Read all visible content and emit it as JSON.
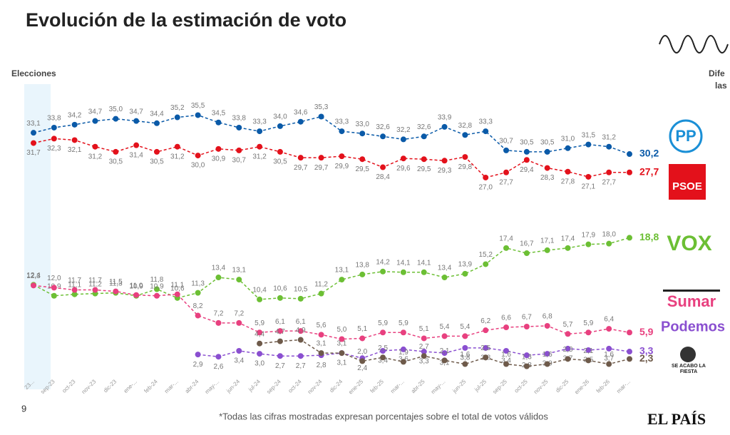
{
  "header": {
    "title": "Evolución de la estimación de voto",
    "side_label": [
      "Dife",
      "las"
    ]
  },
  "chart_data": {
    "type": "line",
    "highlight_label": "Elecciones",
    "ylim": [
      0,
      37
    ],
    "categories": [
      "23...",
      "sep-23",
      "oct-23",
      "nov-23",
      "dic-23",
      "ene-...",
      "feb-24",
      "mar-...",
      "abr-24",
      "may-...",
      "jun-24",
      "jul-24",
      "sep-24",
      "oct-24",
      "nov-24",
      "dic-24",
      "ene-25",
      "feb-25",
      "mar-...",
      "abr-25",
      "may-...",
      "jun-25",
      "jul-25",
      "sep-25",
      "oct-25",
      "nov-25",
      "dic-25",
      "ene-26",
      "feb-26",
      "mar-..."
    ],
    "series": [
      {
        "name": "PP",
        "color": "#0a5aa8",
        "label_pos": "above",
        "values": [
          33.1,
          33.8,
          34.2,
          34.7,
          35.0,
          34.7,
          34.4,
          35.2,
          35.5,
          34.5,
          33.8,
          33.3,
          34.0,
          34.6,
          35.3,
          33.3,
          33.0,
          32.6,
          32.2,
          32.6,
          33.9,
          32.8,
          33.3,
          30.7,
          30.5,
          30.5,
          31.0,
          31.5,
          31.2,
          30.2
        ],
        "value_labels": [
          "33,1",
          "33,8",
          "34,2",
          "34,7",
          "35,0",
          "34,7",
          "34,4",
          "35,2",
          "35,5",
          "34,5",
          "33,8",
          "33,3",
          "34,0",
          "34,6",
          "35,3",
          "33,3",
          "33,0",
          "32,6",
          "32,2",
          "32,6",
          "33,9",
          "32,8",
          "33,3",
          "30,7",
          "30,5",
          "30,5",
          "31,0",
          "31,5",
          "31,2",
          "30,2"
        ]
      },
      {
        "name": "PSOE",
        "color": "#e3111b",
        "label_pos": "below",
        "values": [
          31.7,
          32.3,
          32.1,
          31.2,
          30.5,
          31.4,
          30.5,
          31.2,
          30.0,
          30.9,
          30.7,
          31.2,
          30.5,
          29.7,
          29.7,
          29.9,
          29.5,
          28.4,
          29.6,
          29.5,
          29.3,
          29.8,
          27.0,
          27.7,
          29.4,
          28.3,
          27.8,
          27.1,
          27.7,
          27.7
        ],
        "value_labels": [
          "31,7",
          "32,3",
          "32,1",
          "31,2",
          "30,5",
          "31,4",
          "30,5",
          "31,2",
          "30,0",
          "30,9",
          "30,7",
          "31,2",
          "30,5",
          "29,7",
          "29,7",
          "29,9",
          "29,5",
          "28,4",
          "29,6",
          "29,5",
          "29,3",
          "29,8",
          "27,0",
          "27,7",
          "29,4",
          "28,3",
          "27,8",
          "27,1",
          "27,7",
          "27,7"
        ]
      },
      {
        "name": "VOX",
        "color": "#6cbf34",
        "label_pos": "above",
        "values": [
          12.4,
          10.9,
          11.1,
          11.2,
          11.3,
          10.9,
          11.8,
          10.6,
          11.3,
          13.4,
          13.1,
          10.4,
          10.6,
          10.5,
          11.2,
          13.1,
          13.8,
          14.2,
          14.1,
          14.1,
          13.4,
          13.9,
          15.2,
          17.4,
          16.7,
          17.1,
          17.4,
          17.9,
          18.0,
          18.8
        ],
        "value_labels": [
          "12,4",
          "10,9",
          "11,1",
          "11,2",
          "11,3",
          "10,9",
          "11,8",
          "10,6",
          "11,3",
          "13,4",
          "13,1",
          "10,4",
          "10,6",
          "10,5",
          "11,2",
          "13,1",
          "13,8",
          "14,2",
          "14,1",
          "14,1",
          "13,4",
          "13,9",
          "15,2",
          "17,4",
          "16,7",
          "17,1",
          "17,4",
          "17,9",
          "18,0",
          "18,8"
        ]
      },
      {
        "name": "Sumar",
        "color": "#e8407f",
        "label_pos": "above",
        "values": [
          12.3,
          12.0,
          11.7,
          11.7,
          11.5,
          11.0,
          10.9,
          11.1,
          8.2,
          7.2,
          7.2,
          5.9,
          6.1,
          6.1,
          5.6,
          5.0,
          5.1,
          5.9,
          5.9,
          5.1,
          5.4,
          5.4,
          6.2,
          6.6,
          6.7,
          6.8,
          5.7,
          5.9,
          6.4,
          5.9
        ],
        "value_labels": [
          "12,3",
          "12,0",
          "11,7",
          "11,7",
          "11,5",
          "11,0",
          "10,9",
          "11,1",
          "8,2",
          "7,2",
          "7,2",
          "5,9",
          "6,1",
          "6,1",
          "5,6",
          "5,0",
          "5,1",
          "5,9",
          "5,9",
          "5,1",
          "5,4",
          "5,4",
          "6,2",
          "6,6",
          "6,7",
          "6,8",
          "5,7",
          "5,9",
          "6,4",
          "5,9"
        ]
      },
      {
        "name": "Podemos",
        "color": "#8a4fd0",
        "label_pos": "below",
        "values": [
          null,
          null,
          null,
          null,
          null,
          null,
          null,
          null,
          2.9,
          2.6,
          3.4,
          3.0,
          2.7,
          2.7,
          2.8,
          3.1,
          2.4,
          3.4,
          3.6,
          3.3,
          3.1,
          3.8,
          3.8,
          3.4,
          2.8,
          3.0,
          3.7,
          3.5,
          3.7,
          3.3
        ],
        "value_labels": [
          null,
          null,
          null,
          null,
          null,
          null,
          null,
          null,
          "2,9",
          "2,6",
          "3,4",
          "3,0",
          "2,7",
          "2,7",
          "2,8",
          "3,1",
          "2,4",
          "3,4",
          "3,6",
          "3,3",
          "3,1",
          "3,8",
          "3,8",
          "3,4",
          "2,8",
          "3,0",
          "3,7",
          "3,5",
          "3,7",
          "3,3"
        ]
      },
      {
        "name": "SE ACABÓ LA FIESTA",
        "color": "#6e5a4a",
        "label_pos": "above",
        "values": [
          null,
          null,
          null,
          null,
          null,
          null,
          null,
          null,
          null,
          null,
          null,
          4.4,
          4.7,
          4.9,
          3.1,
          3.1,
          2.0,
          2.5,
          1.9,
          2.7,
          2.1,
          1.6,
          2.5,
          1.6,
          1.3,
          1.6,
          2.3,
          2.1,
          1.6,
          2.3
        ],
        "value_labels": [
          null,
          null,
          null,
          null,
          null,
          null,
          null,
          null,
          null,
          null,
          null,
          "4,4",
          "4,7",
          "4,9",
          "3,1",
          "3,1",
          "2,0",
          "2,5",
          "1,9",
          "2,7",
          "2,1",
          "1,6",
          "2,5",
          "1,6",
          "1,3",
          "1,6",
          "2,3",
          "2,1",
          "1,6",
          "2,3"
        ]
      }
    ]
  },
  "page_number": "9",
  "footnote": "*Todas las cifras mostradas expresan porcentajes sobre el total de votos válidos",
  "brand": "EL PAÍS"
}
